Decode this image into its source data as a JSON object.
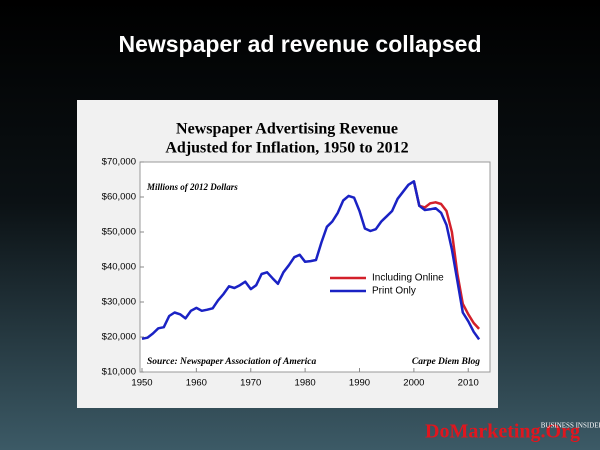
{
  "slide": {
    "title": "Newspaper ad revenue collapsed"
  },
  "footer": {
    "watermark": "DoMarketing.Org",
    "logo": "BUSINESS INSIDER"
  },
  "chart_data": {
    "type": "line",
    "title": "Newspaper Advertising Revenue",
    "subtitle": "Adjusted for Inflation, 1950 to 2012",
    "annotations": [
      "Millions of 2012 Dollars",
      "Source: Newspaper Association of America",
      "Carpe Diem Blog"
    ],
    "x": [
      1950,
      1951,
      1952,
      1953,
      1954,
      1955,
      1956,
      1957,
      1958,
      1959,
      1960,
      1961,
      1962,
      1963,
      1964,
      1965,
      1966,
      1967,
      1968,
      1969,
      1970,
      1971,
      1972,
      1973,
      1974,
      1975,
      1976,
      1977,
      1978,
      1979,
      1980,
      1981,
      1982,
      1983,
      1984,
      1985,
      1986,
      1987,
      1988,
      1989,
      1990,
      1991,
      1992,
      1993,
      1994,
      1995,
      1996,
      1997,
      1998,
      1999,
      2000,
      2001,
      2002,
      2003,
      2004,
      2005,
      2006,
      2007,
      2008,
      2009,
      2010,
      2011,
      2012
    ],
    "series": [
      {
        "name": "Including Online",
        "color": "#d3202a",
        "values": [
          null,
          null,
          null,
          null,
          null,
          null,
          null,
          null,
          null,
          null,
          null,
          null,
          null,
          null,
          null,
          null,
          null,
          null,
          null,
          null,
          null,
          null,
          null,
          null,
          null,
          null,
          null,
          null,
          null,
          null,
          null,
          null,
          null,
          null,
          null,
          null,
          null,
          null,
          null,
          null,
          null,
          null,
          null,
          null,
          null,
          null,
          null,
          null,
          null,
          null,
          64500,
          57500,
          57000,
          58200,
          58500,
          58000,
          56000,
          50000,
          38000,
          29500,
          26500,
          24000,
          22300
        ]
      },
      {
        "name": "Print Only",
        "color": "#1a22c4",
        "values": [
          19500,
          19800,
          21000,
          22500,
          22800,
          26000,
          27000,
          26500,
          25300,
          27500,
          28300,
          27500,
          27800,
          28200,
          30500,
          32300,
          34500,
          34000,
          34800,
          35800,
          33700,
          34800,
          38000,
          38500,
          36800,
          35200,
          38500,
          40500,
          42800,
          43500,
          41500,
          41700,
          42000,
          47000,
          51500,
          53000,
          55500,
          59000,
          60300,
          59800,
          56000,
          51000,
          50300,
          50800,
          53000,
          54500,
          56000,
          59500,
          61500,
          63500,
          64500,
          57500,
          56300,
          56500,
          56800,
          55500,
          52000,
          45000,
          36000,
          27000,
          24500,
          21500,
          19300
        ]
      }
    ],
    "xlim": [
      1950,
      2014
    ],
    "xticks": [
      1950,
      1960,
      1970,
      1980,
      1990,
      2000,
      2010
    ],
    "ylim": [
      10000,
      70000
    ],
    "yticks": [
      {
        "value": 10000,
        "label": "$10,000"
      },
      {
        "value": 20000,
        "label": "$20,000"
      },
      {
        "value": 30000,
        "label": "$30,000"
      },
      {
        "value": 40000,
        "label": "$40,000"
      },
      {
        "value": 50000,
        "label": "$50,000"
      },
      {
        "value": 60000,
        "label": "$60,000"
      },
      {
        "value": 70000,
        "label": "$70,000"
      }
    ],
    "grid": false,
    "legend": "center-right"
  }
}
